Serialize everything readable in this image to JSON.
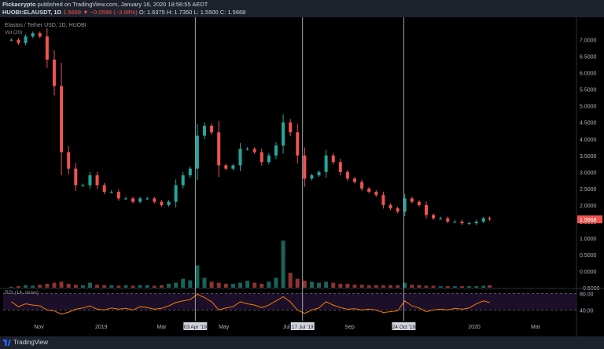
{
  "header": {
    "publisher": "Pickacrypto",
    "published_text": "published on TradingView.com, January 16, 2020 18:56:55 AEDT",
    "symbol": "HUOBI:ELAUSDT, 1D",
    "last": "1.5668",
    "change": "▼ −0.0598 (−3.68%)",
    "ohlc": "O: 1.6375  H: 1.7350  L: 1.5500  C: 1.5668"
  },
  "legend": {
    "title": "Elastos / Tether USD, 1D, HUOBI",
    "volume": "Vol (20)",
    "rsi": "RSI (14, close)"
  },
  "footer": {
    "brand": "TradingView"
  },
  "colors": {
    "up": "#26a69a",
    "down": "#ef5350",
    "rsi": "#f57c00",
    "rsi_band": "#1c0f2a",
    "marker": "#c8c8c8",
    "price_label": "#ef5350"
  },
  "chart_data": [
    {
      "type": "line",
      "title": "Elastos / Tether USD, 1D, HUOBI",
      "xlabel": "",
      "ylabel": "",
      "x": [
        "2018-10-05",
        "2018-10-12",
        "2018-10-19",
        "2018-10-26",
        "2018-11-02",
        "2018-11-09",
        "2018-11-16",
        "2018-11-23",
        "2018-11-30",
        "2018-12-07",
        "2018-12-14",
        "2018-12-21",
        "2018-12-28",
        "2019-01-04",
        "2019-01-11",
        "2019-01-18",
        "2019-01-25",
        "2019-02-01",
        "2019-02-08",
        "2019-02-15",
        "2019-02-22",
        "2019-03-01",
        "2019-03-08",
        "2019-03-15",
        "2019-03-22",
        "2019-03-29",
        "2019-04-05",
        "2019-04-12",
        "2019-04-19",
        "2019-04-26",
        "2019-05-03",
        "2019-05-10",
        "2019-05-17",
        "2019-05-24",
        "2019-05-31",
        "2019-06-07",
        "2019-06-14",
        "2019-06-21",
        "2019-06-28",
        "2019-07-05",
        "2019-07-12",
        "2019-07-19",
        "2019-07-26",
        "2019-08-02",
        "2019-08-09",
        "2019-08-16",
        "2019-08-23",
        "2019-08-30",
        "2019-09-06",
        "2019-09-13",
        "2019-09-20",
        "2019-09-27",
        "2019-10-04",
        "2019-10-11",
        "2019-10-18",
        "2019-10-25",
        "2019-11-01",
        "2019-11-08",
        "2019-11-15",
        "2019-11-22",
        "2019-11-29",
        "2019-12-06",
        "2019-12-13",
        "2019-12-20",
        "2019-12-27",
        "2020-01-03",
        "2020-01-10",
        "2020-01-16"
      ],
      "series": [
        {
          "role": "price",
          "values": [
            7.0,
            6.9,
            7.1,
            7.2,
            7.1,
            6.4,
            5.6,
            3.6,
            3.1,
            2.6,
            2.6,
            2.9,
            2.6,
            2.4,
            2.4,
            2.2,
            2.2,
            2.1,
            2.2,
            2.2,
            2.1,
            2.0,
            2.1,
            2.6,
            2.9,
            3.1,
            4.1,
            4.4,
            4.2,
            3.2,
            3.1,
            3.2,
            3.7,
            3.7,
            3.6,
            3.3,
            3.5,
            3.8,
            4.5,
            4.2,
            3.5,
            2.8,
            2.9,
            3.0,
            3.5,
            3.3,
            3.0,
            2.8,
            2.7,
            2.5,
            2.4,
            2.3,
            2.0,
            1.9,
            1.8,
            2.2,
            2.1,
            2.0,
            1.7,
            1.6,
            1.6,
            1.5,
            1.5,
            1.45,
            1.45,
            1.5,
            1.6,
            1.5668
          ]
        },
        {
          "role": "volume",
          "values": [
            0.02,
            0.03,
            0.05,
            0.04,
            0.06,
            0.08,
            0.1,
            0.12,
            0.08,
            0.06,
            0.05,
            0.1,
            0.06,
            0.05,
            0.05,
            0.04,
            0.05,
            0.04,
            0.05,
            0.05,
            0.04,
            0.05,
            0.08,
            0.1,
            0.18,
            0.15,
            0.45,
            0.2,
            0.12,
            0.1,
            0.08,
            0.08,
            0.1,
            0.14,
            0.1,
            0.08,
            0.12,
            0.2,
            0.95,
            0.3,
            0.18,
            0.14,
            0.12,
            0.1,
            0.12,
            0.1,
            0.08,
            0.08,
            0.06,
            0.06,
            0.05,
            0.05,
            0.05,
            0.05,
            0.05,
            0.1,
            0.06,
            0.05,
            0.04,
            0.04,
            0.03,
            0.03,
            0.03,
            0.03,
            0.03,
            0.03,
            0.04,
            0.05
          ]
        }
      ],
      "ylim": [
        -0.5,
        7.3
      ],
      "y_ticks": [
        "7.0000",
        "6.5000",
        "6.0000",
        "5.5000",
        "5.0000",
        "4.5000",
        "4.0000",
        "3.5000",
        "3.0000",
        "2.5000",
        "2.0000",
        "1.5000",
        "1.0000",
        "0.5000",
        "0.0000",
        "−0.5000"
      ],
      "x_ticks": [
        "Nov",
        "2019",
        "Mar",
        "May",
        "Jul",
        "Sep",
        "2020",
        "Mar"
      ],
      "markers": [
        "03 Apr '19",
        "17 Jul '19",
        "24 Oct '19"
      ],
      "price_label": "1.5668",
      "grid": false
    },
    {
      "type": "line",
      "title": "RSI (14, close)",
      "series": [
        {
          "role": "rsi",
          "values": [
            60,
            48,
            55,
            52,
            50,
            40,
            38,
            30,
            35,
            42,
            45,
            50,
            42,
            40,
            45,
            42,
            44,
            40,
            48,
            46,
            42,
            44,
            50,
            58,
            62,
            65,
            78,
            70,
            60,
            40,
            45,
            48,
            60,
            55,
            52,
            46,
            52,
            62,
            72,
            60,
            40,
            32,
            40,
            45,
            60,
            52,
            46,
            42,
            43,
            40,
            42,
            40,
            34,
            36,
            38,
            62,
            50,
            45,
            36,
            40,
            42,
            40,
            44,
            42,
            45,
            55,
            62,
            58
          ]
        }
      ],
      "ylim": [
        20,
        90
      ],
      "y_ticks": [
        "80.00",
        "40.00"
      ]
    }
  ]
}
